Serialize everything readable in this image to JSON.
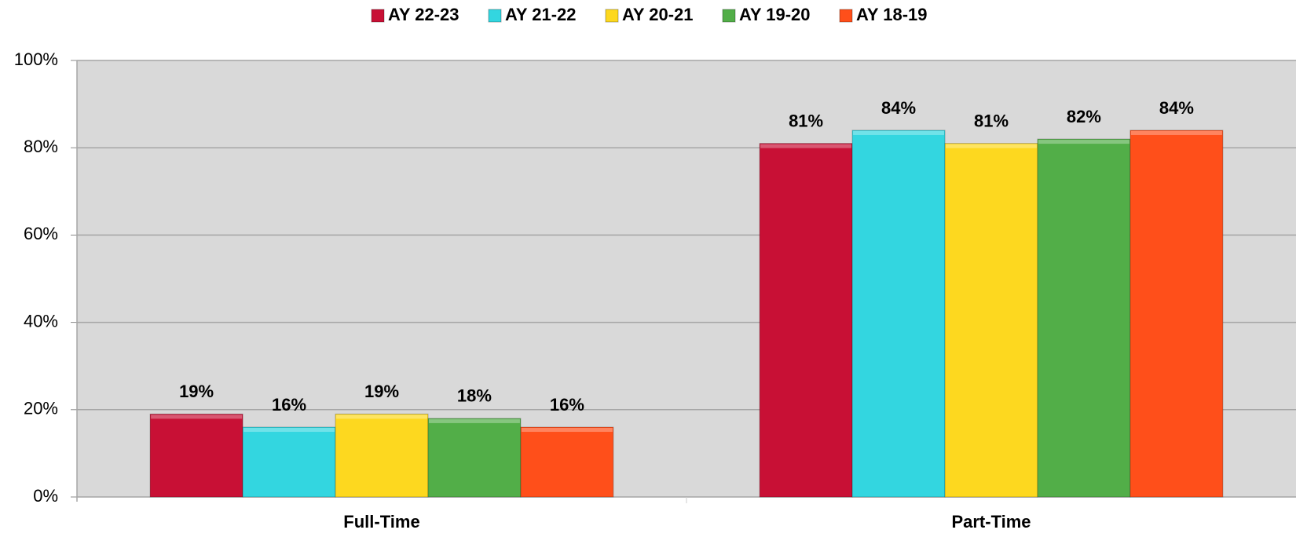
{
  "chart_data": {
    "type": "bar",
    "categories": [
      "Full-Time",
      "Part-Time"
    ],
    "series": [
      {
        "name": "AY 22-23",
        "color": "#c81035",
        "values": [
          19,
          81
        ],
        "value_labels": [
          "19%",
          "81%"
        ]
      },
      {
        "name": "AY 21-22",
        "color": "#33d6e0",
        "values": [
          16,
          84
        ],
        "value_labels": [
          "16%",
          "84%"
        ]
      },
      {
        "name": "AY 20-21",
        "color": "#fdd81f",
        "values": [
          19,
          81
        ],
        "value_labels": [
          "19%",
          "81%"
        ]
      },
      {
        "name": "AY 19-20",
        "color": "#52ae48",
        "values": [
          18,
          82
        ],
        "value_labels": [
          "18%",
          "82%"
        ]
      },
      {
        "name": "AY 18-19",
        "color": "#ff4f1a",
        "values": [
          16,
          84
        ],
        "value_labels": [
          "16%",
          "84%"
        ]
      }
    ],
    "ylim": [
      0,
      100
    ],
    "yticks": [
      {
        "value": 0,
        "label": "0%"
      },
      {
        "value": 20,
        "label": "20%"
      },
      {
        "value": 40,
        "label": "40%"
      },
      {
        "value": 60,
        "label": "60%"
      },
      {
        "value": 80,
        "label": "80%"
      },
      {
        "value": 100,
        "label": "100%"
      }
    ],
    "grid": true,
    "legend": "top"
  }
}
